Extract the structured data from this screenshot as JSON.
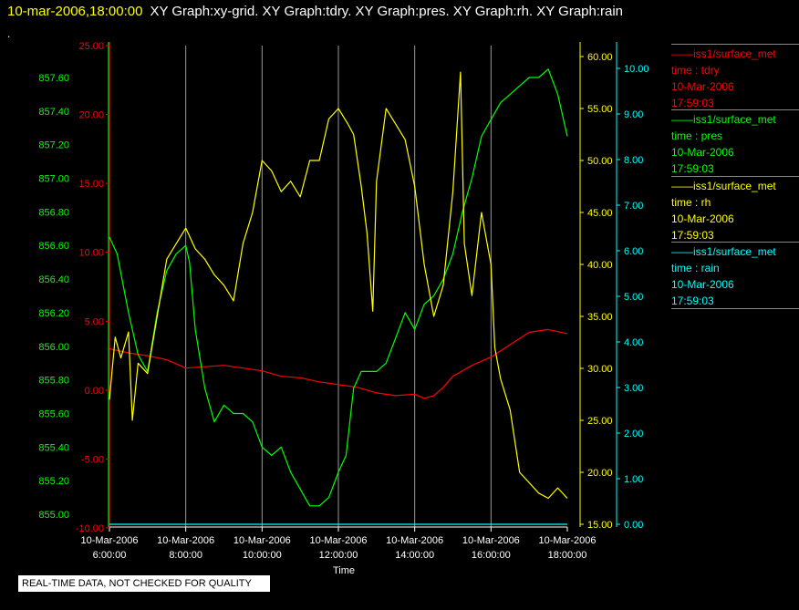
{
  "title": {
    "time": "10-mar-2006,18:00:00",
    "graphs": "XY Graph:xy-grid.  XY Graph:tdry.  XY Graph:pres.  XY Graph:rh.  XY Graph:rain",
    "dot": "."
  },
  "footer": {
    "quality": "REAL-TIME DATA, NOT CHECKED FOR QUALITY"
  },
  "legend": [
    {
      "series": "iss1/surface_met",
      "var": "time : tdry",
      "date": "10-Mar-2006",
      "time": "17:59:03",
      "color": "#ff0000"
    },
    {
      "series": "iss1/surface_met",
      "var": "time : pres",
      "date": "10-Mar-2006",
      "time": "17:59:03",
      "color": "#00ff00"
    },
    {
      "series": "iss1/surface_met",
      "var": "time : rh",
      "date": "10-Mar-2006",
      "time": "17:59:03",
      "color": "#ffff00"
    },
    {
      "series": "iss1/surface_met",
      "var": "time : rain",
      "date": "10-Mar-2006",
      "time": "17:59:03",
      "color": "#00ffff"
    }
  ],
  "chart_data": {
    "type": "line",
    "xlabel": "Time",
    "x_ticks": [
      {
        "date": "10-Mar-2006",
        "time": "6:00:00",
        "hour": 6
      },
      {
        "date": "10-Mar-2006",
        "time": "8:00:00",
        "hour": 8
      },
      {
        "date": "10-Mar-2006",
        "time": "10:00:00",
        "hour": 10
      },
      {
        "date": "10-Mar-2006",
        "time": "12:00:00",
        "hour": 12
      },
      {
        "date": "10-Mar-2006",
        "time": "14:00:00",
        "hour": 14
      },
      {
        "date": "10-Mar-2006",
        "time": "16:00:00",
        "hour": 16
      },
      {
        "date": "10-Mar-2006",
        "time": "18:00:00",
        "hour": 18
      }
    ],
    "xlim": [
      6,
      18
    ],
    "grid": "vertical",
    "axes": {
      "pres": {
        "color": "#00ff00",
        "range": [
          855.0,
          857.7
        ],
        "ticks": [
          "855.00",
          "855.20",
          "855.40",
          "855.60",
          "855.80",
          "856.00",
          "856.20",
          "856.40",
          "856.60",
          "856.80",
          "857.00",
          "857.20",
          "857.40",
          "857.60"
        ]
      },
      "tdry": {
        "color": "#ff0000",
        "range": [
          -10,
          25
        ],
        "ticks": [
          "-10.00",
          "-5.00",
          "0.00",
          "5.00",
          "10.00",
          "15.00",
          "20.00",
          "25.00"
        ]
      },
      "rh": {
        "color": "#ffff00",
        "range": [
          15,
          60.5
        ],
        "ticks": [
          "15.00",
          "20.00",
          "25.00",
          "30.00",
          "35.00",
          "40.00",
          "45.00",
          "50.00",
          "55.00",
          "60.00"
        ]
      },
      "rain": {
        "color": "#00ffff",
        "range": [
          0,
          10.3
        ],
        "ticks": [
          "0.00",
          "1.00",
          "2.00",
          "3.00",
          "4.00",
          "5.00",
          "6.00",
          "7.00",
          "8.00",
          "9.00",
          "10.00"
        ]
      }
    },
    "series": [
      {
        "name": "iss1/surface_met time : tdry",
        "axis": "tdry",
        "color": "#ff0000",
        "points": [
          [
            6.0,
            3.0
          ],
          [
            6.5,
            2.7
          ],
          [
            7.0,
            2.5
          ],
          [
            7.5,
            2.2
          ],
          [
            8.0,
            1.6
          ],
          [
            8.5,
            1.7
          ],
          [
            9.0,
            1.8
          ],
          [
            9.5,
            1.6
          ],
          [
            10.0,
            1.4
          ],
          [
            10.5,
            1.0
          ],
          [
            11.0,
            0.9
          ],
          [
            11.5,
            0.6
          ],
          [
            12.0,
            0.4
          ],
          [
            12.5,
            0.2
          ],
          [
            13.0,
            -0.2
          ],
          [
            13.5,
            -0.4
          ],
          [
            14.0,
            -0.3
          ],
          [
            14.25,
            -0.6
          ],
          [
            14.5,
            -0.4
          ],
          [
            14.75,
            0.2
          ],
          [
            15.0,
            1.0
          ],
          [
            15.5,
            1.8
          ],
          [
            16.0,
            2.4
          ],
          [
            16.5,
            3.3
          ],
          [
            17.0,
            4.2
          ],
          [
            17.5,
            4.4
          ],
          [
            18.0,
            4.1
          ]
        ]
      },
      {
        "name": "iss1/surface_met time : pres",
        "axis": "pres",
        "color": "#00ff00",
        "points": [
          [
            6.0,
            856.65
          ],
          [
            6.2,
            856.55
          ],
          [
            6.5,
            856.2
          ],
          [
            6.75,
            855.95
          ],
          [
            7.0,
            855.85
          ],
          [
            7.25,
            856.2
          ],
          [
            7.5,
            856.45
          ],
          [
            7.75,
            856.55
          ],
          [
            8.0,
            856.6
          ],
          [
            8.1,
            856.5
          ],
          [
            8.25,
            856.1
          ],
          [
            8.5,
            855.75
          ],
          [
            8.75,
            855.55
          ],
          [
            9.0,
            855.65
          ],
          [
            9.25,
            855.6
          ],
          [
            9.5,
            855.6
          ],
          [
            9.75,
            855.55
          ],
          [
            10.0,
            855.4
          ],
          [
            10.25,
            855.35
          ],
          [
            10.5,
            855.4
          ],
          [
            10.75,
            855.25
          ],
          [
            11.0,
            855.15
          ],
          [
            11.25,
            855.05
          ],
          [
            11.5,
            855.05
          ],
          [
            11.75,
            855.1
          ],
          [
            12.0,
            855.25
          ],
          [
            12.2,
            855.35
          ],
          [
            12.4,
            855.75
          ],
          [
            12.6,
            855.85
          ],
          [
            13.0,
            855.85
          ],
          [
            13.25,
            855.9
          ],
          [
            13.5,
            856.05
          ],
          [
            13.75,
            856.2
          ],
          [
            14.0,
            856.1
          ],
          [
            14.25,
            856.25
          ],
          [
            14.5,
            856.3
          ],
          [
            14.75,
            856.4
          ],
          [
            15.0,
            856.55
          ],
          [
            15.25,
            856.8
          ],
          [
            15.5,
            857.0
          ],
          [
            15.75,
            857.25
          ],
          [
            16.0,
            857.35
          ],
          [
            16.25,
            857.45
          ],
          [
            16.5,
            857.5
          ],
          [
            16.75,
            857.55
          ],
          [
            17.0,
            857.6
          ],
          [
            17.25,
            857.6
          ],
          [
            17.5,
            857.65
          ],
          [
            17.75,
            857.5
          ],
          [
            17.9,
            857.35
          ],
          [
            18.0,
            857.25
          ]
        ]
      },
      {
        "name": "iss1/surface_met time : rh",
        "axis": "rh",
        "color": "#ffff00",
        "points": [
          [
            6.0,
            27.0
          ],
          [
            6.15,
            33.0
          ],
          [
            6.3,
            31.0
          ],
          [
            6.5,
            33.5
          ],
          [
            6.6,
            25.0
          ],
          [
            6.75,
            30.5
          ],
          [
            7.0,
            29.5
          ],
          [
            7.25,
            35.0
          ],
          [
            7.5,
            40.5
          ],
          [
            7.75,
            42.0
          ],
          [
            8.0,
            43.5
          ],
          [
            8.25,
            41.5
          ],
          [
            8.5,
            40.5
          ],
          [
            8.75,
            39.0
          ],
          [
            9.0,
            38.0
          ],
          [
            9.25,
            36.5
          ],
          [
            9.5,
            42.0
          ],
          [
            9.75,
            45.0
          ],
          [
            10.0,
            50.0
          ],
          [
            10.25,
            49.0
          ],
          [
            10.5,
            47.0
          ],
          [
            10.75,
            48.0
          ],
          [
            11.0,
            46.5
          ],
          [
            11.25,
            50.0
          ],
          [
            11.5,
            50.0
          ],
          [
            11.75,
            54.0
          ],
          [
            12.0,
            55.0
          ],
          [
            12.25,
            53.5
          ],
          [
            12.4,
            52.5
          ],
          [
            12.6,
            47.5
          ],
          [
            12.75,
            43.0
          ],
          [
            12.9,
            35.5
          ],
          [
            13.0,
            48.0
          ],
          [
            13.25,
            55.0
          ],
          [
            13.5,
            53.5
          ],
          [
            13.75,
            52.0
          ],
          [
            14.0,
            47.5
          ],
          [
            14.25,
            40.0
          ],
          [
            14.5,
            35.0
          ],
          [
            14.75,
            38.0
          ],
          [
            15.0,
            47.0
          ],
          [
            15.2,
            58.5
          ],
          [
            15.3,
            42.0
          ],
          [
            15.5,
            37.0
          ],
          [
            15.75,
            45.0
          ],
          [
            16.0,
            40.0
          ],
          [
            16.1,
            32.0
          ],
          [
            16.25,
            29.0
          ],
          [
            16.5,
            26.0
          ],
          [
            16.75,
            20.0
          ],
          [
            17.0,
            19.0
          ],
          [
            17.25,
            18.0
          ],
          [
            17.5,
            17.5
          ],
          [
            17.75,
            18.5
          ],
          [
            18.0,
            17.5
          ]
        ]
      },
      {
        "name": "iss1/surface_met time : rain",
        "axis": "rain",
        "color": "#00ffff",
        "points": [
          [
            6.0,
            0.0
          ],
          [
            18.0,
            0.0
          ]
        ]
      }
    ]
  }
}
